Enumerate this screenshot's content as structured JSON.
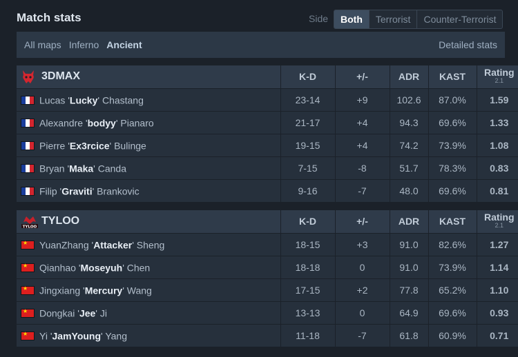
{
  "header": {
    "title": "Match stats",
    "side_label": "Side",
    "sides": [
      "Both",
      "Terrorist",
      "Counter-Terrorist"
    ],
    "active_side": "Both"
  },
  "maps": {
    "items": [
      "All maps",
      "Inferno",
      "Ancient"
    ],
    "active": "Ancient",
    "detailed_link": "Detailed stats"
  },
  "columns": {
    "kd": "K-D",
    "plusminus": "+/-",
    "adr": "ADR",
    "kast": "KAST",
    "rating": "Rating",
    "rating_version": "2.1"
  },
  "teams": [
    {
      "name": "3DMAX",
      "logo_icon": "3dmax-devil-logo",
      "flag": "fr",
      "players": [
        {
          "first": "Lucas",
          "nick": "Lucky",
          "last": "Chastang",
          "kd": "23-14",
          "pm": "+9",
          "adr": "102.6",
          "kast": "87.0%",
          "rating": "1.59"
        },
        {
          "first": "Alexandre",
          "nick": "bodyy",
          "last": "Pianaro",
          "kd": "21-17",
          "pm": "+4",
          "adr": "94.3",
          "kast": "69.6%",
          "rating": "1.33"
        },
        {
          "first": "Pierre",
          "nick": "Ex3rcice",
          "last": "Bulinge",
          "kd": "19-15",
          "pm": "+4",
          "adr": "74.2",
          "kast": "73.9%",
          "rating": "1.08"
        },
        {
          "first": "Bryan",
          "nick": "Maka",
          "last": "Canda",
          "kd": "7-15",
          "pm": "-8",
          "adr": "51.7",
          "kast": "78.3%",
          "rating": "0.83"
        },
        {
          "first": "Filip",
          "nick": "Graviti",
          "last": "Brankovic",
          "kd": "9-16",
          "pm": "-7",
          "adr": "48.0",
          "kast": "69.6%",
          "rating": "0.81"
        }
      ]
    },
    {
      "name": "TYLOO",
      "logo_icon": "tyloo-logo",
      "flag": "cn",
      "players": [
        {
          "first": "YuanZhang",
          "nick": "Attacker",
          "last": "Sheng",
          "kd": "18-15",
          "pm": "+3",
          "adr": "91.0",
          "kast": "82.6%",
          "rating": "1.27"
        },
        {
          "first": "Qianhao",
          "nick": "Moseyuh",
          "last": "Chen",
          "kd": "18-18",
          "pm": "0",
          "adr": "91.0",
          "kast": "73.9%",
          "rating": "1.14"
        },
        {
          "first": "Jingxiang",
          "nick": "Mercury",
          "last": "Wang",
          "kd": "17-15",
          "pm": "+2",
          "adr": "77.8",
          "kast": "65.2%",
          "rating": "1.10"
        },
        {
          "first": "Dongkai",
          "nick": "Jee",
          "last": "Ji",
          "kd": "13-13",
          "pm": "0",
          "adr": "64.9",
          "kast": "69.6%",
          "rating": "0.93"
        },
        {
          "first": "Yi",
          "nick": "JamYoung",
          "last": "Yang",
          "kd": "11-18",
          "pm": "-7",
          "adr": "61.8",
          "kast": "60.9%",
          "rating": "0.71"
        }
      ]
    }
  ],
  "colors": {
    "positive": "#37b83d",
    "negative": "#e03636",
    "active_side_bg": "#3d4d5f"
  }
}
